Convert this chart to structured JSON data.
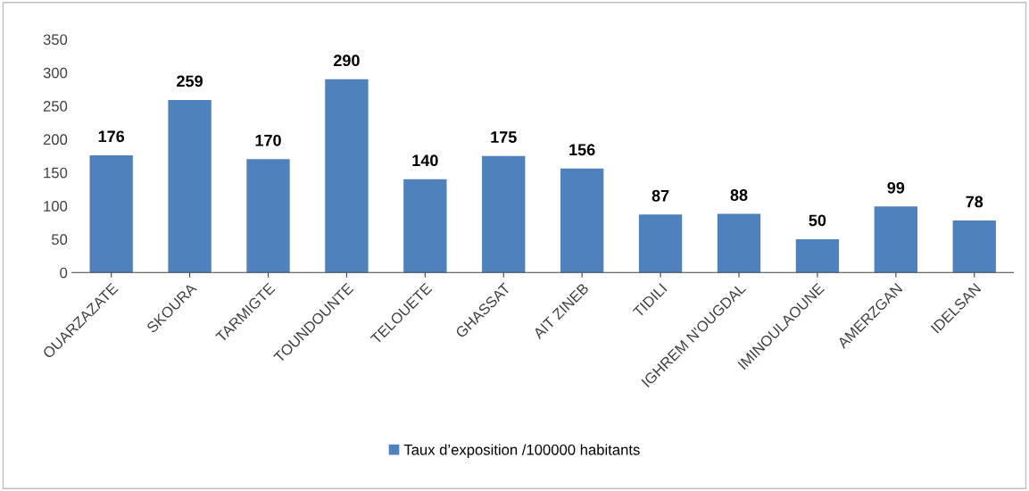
{
  "chart_data": {
    "type": "bar",
    "categories": [
      "OUARZAZATE",
      "SKOURA",
      "TARMIGTE",
      "TOUNDOUNTE",
      "TELOUETE",
      "GHASSAT",
      "AIT ZINEB",
      "TIDILI",
      "IGHREM N'OUGDAL",
      "IMINOULAOUNE",
      "AMERZGAN",
      "IDELSAN"
    ],
    "series": [
      {
        "name": "Taux d’exposition /100000 habitants",
        "color": "#4f81bd",
        "values": [
          176,
          259,
          170,
          290,
          140,
          175,
          156,
          87,
          88,
          50,
          99,
          78
        ]
      }
    ],
    "ylim": [
      0,
      350
    ],
    "yticks": [
      0,
      50,
      100,
      150,
      200,
      250,
      300,
      350
    ],
    "data_labels": true,
    "grid": false,
    "legend": "bottom"
  }
}
